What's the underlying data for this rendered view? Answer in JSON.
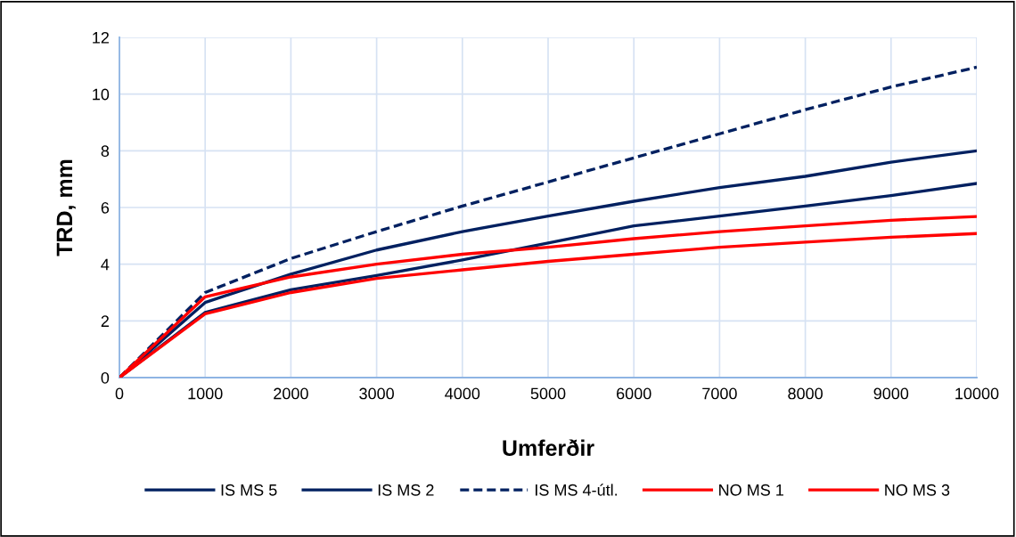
{
  "chart_data": {
    "type": "line",
    "xlabel": "Umferðir",
    "ylabel": "TRD, mm",
    "x": [
      0,
      1000,
      2000,
      3000,
      4000,
      5000,
      6000,
      7000,
      8000,
      9000,
      10000
    ],
    "series": [
      {
        "name": "IS MS 5",
        "color": "#002060",
        "line_style": "solid",
        "values": [
          0,
          2.65,
          3.65,
          4.5,
          5.15,
          5.7,
          6.22,
          6.7,
          7.1,
          7.6,
          8.0
        ]
      },
      {
        "name": "IS MS 2",
        "color": "#002060",
        "line_style": "solid",
        "values": [
          0,
          2.3,
          3.1,
          3.6,
          4.15,
          4.75,
          5.35,
          5.7,
          6.05,
          6.42,
          6.85
        ]
      },
      {
        "name": "IS MS 4-útl.",
        "color": "#002060",
        "line_style": "dashed",
        "values": [
          0,
          3.0,
          4.2,
          5.15,
          6.05,
          6.9,
          7.75,
          8.6,
          9.45,
          10.25,
          10.95
        ]
      },
      {
        "name": "NO MS 1",
        "color": "#ff0000",
        "line_style": "solid",
        "values": [
          0,
          2.85,
          3.55,
          4.0,
          4.35,
          4.6,
          4.9,
          5.15,
          5.35,
          5.55,
          5.68
        ]
      },
      {
        "name": "NO MS 3",
        "color": "#ff0000",
        "line_style": "solid",
        "values": [
          0,
          2.25,
          3.0,
          3.5,
          3.8,
          4.1,
          4.35,
          4.6,
          4.78,
          4.95,
          5.08
        ]
      }
    ],
    "xlim": [
      0,
      10000
    ],
    "xticks": [
      0,
      1000,
      2000,
      3000,
      4000,
      5000,
      6000,
      7000,
      8000,
      9000,
      10000
    ],
    "ylim": [
      0,
      12
    ],
    "yticks": [
      0,
      2,
      4,
      6,
      8,
      10,
      12
    ],
    "grid": true,
    "legend": "bottom",
    "marker": "none"
  }
}
